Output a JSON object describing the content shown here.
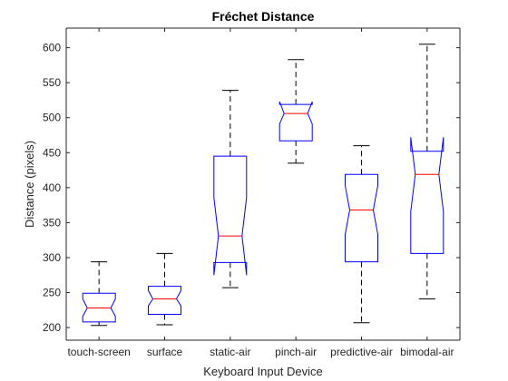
{
  "chart_data": {
    "type": "box",
    "title": "Fréchet Distance",
    "xlabel": "Keyboard Input Device",
    "ylabel": "Distance (pixels)",
    "ylim": [
      182,
      628
    ],
    "yticks": [
      200,
      250,
      300,
      350,
      400,
      450,
      500,
      550,
      600
    ],
    "notched": true,
    "categories": [
      "touch-screen",
      "surface",
      "static-air",
      "pinch-air",
      "predictive-air",
      "bimodal-air"
    ],
    "boxes": [
      {
        "whisker_low": 203,
        "q1": 208,
        "median": 228,
        "q3": 249,
        "whisker_high": 294,
        "notch_low": 216,
        "notch_high": 241
      },
      {
        "whisker_low": 204,
        "q1": 219,
        "median": 241,
        "q3": 259,
        "whisker_high": 306,
        "notch_low": 231,
        "notch_high": 253
      },
      {
        "whisker_low": 257,
        "q1": 293,
        "median": 331,
        "q3": 445,
        "whisker_high": 539,
        "notch_low": 275,
        "notch_high": 386
      },
      {
        "whisker_low": 435,
        "q1": 467,
        "median": 506,
        "q3": 519,
        "whisker_high": 583,
        "notch_low": 491,
        "notch_high": 523
      },
      {
        "whisker_low": 207,
        "q1": 294,
        "median": 368,
        "q3": 419,
        "whisker_high": 460,
        "notch_low": 333,
        "notch_high": 403
      },
      {
        "whisker_low": 241,
        "q1": 306,
        "median": 419,
        "q3": 452,
        "whisker_high": 605,
        "notch_low": 366,
        "notch_high": 472
      }
    ],
    "grid": false,
    "legend": "none",
    "colors": {
      "box": "#0000ff",
      "median": "#ff0000",
      "whisker": "#000000",
      "axis": "#262626"
    }
  }
}
